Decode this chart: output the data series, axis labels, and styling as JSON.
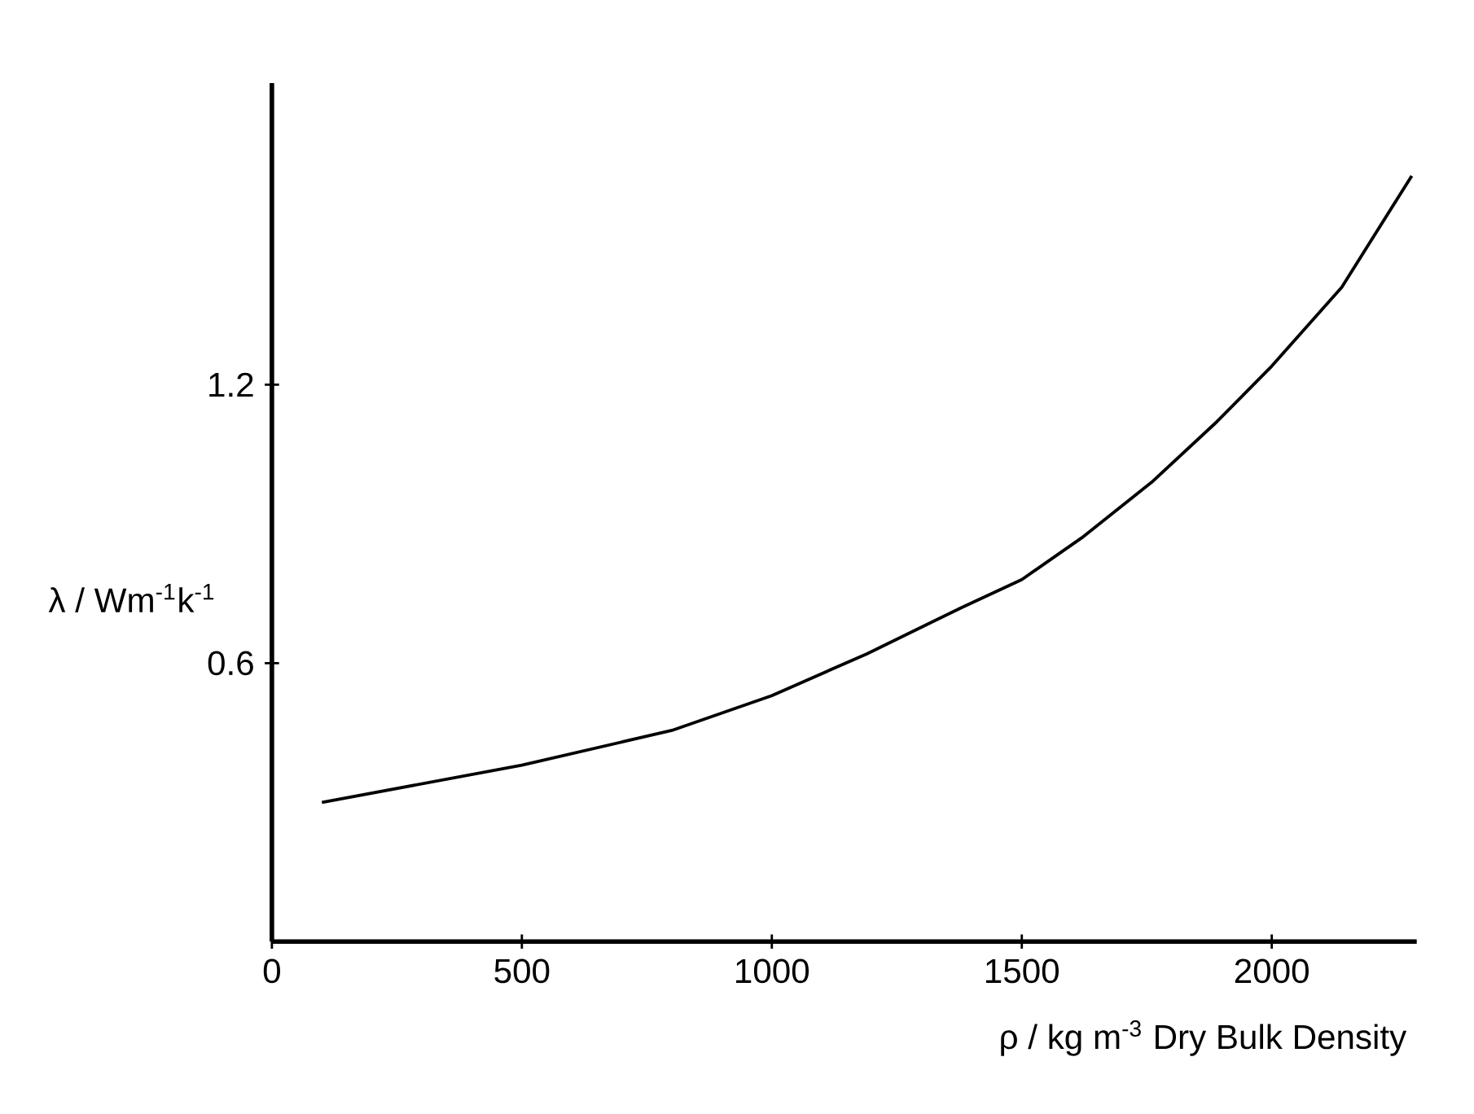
{
  "chart_data": {
    "type": "line",
    "xlabel": "ρ / kg m$^{-3}$   Dry   Bulk   Density",
    "ylabel": "λ / Wm$^{-1}$k$^{-1}$",
    "x": [
      100,
      500,
      800,
      1000,
      1190,
      1380,
      1500,
      1620,
      1760,
      1890,
      2000,
      2140,
      2280
    ],
    "series": [
      {
        "color": "#000000",
        "values": [
          0.3,
          0.38,
          0.455,
          0.53,
          0.62,
          0.72,
          0.78,
          0.87,
          0.99,
          1.12,
          1.24,
          1.41,
          1.65
        ]
      }
    ],
    "xlim": [
      0,
      2290
    ],
    "ylim": [
      0,
      1.85
    ],
    "xticks": [
      0,
      500,
      1000,
      1500,
      2000
    ],
    "yticks": [
      0.6,
      1.2
    ],
    "grid": false,
    "marker": "none",
    "line_style": "solid"
  }
}
